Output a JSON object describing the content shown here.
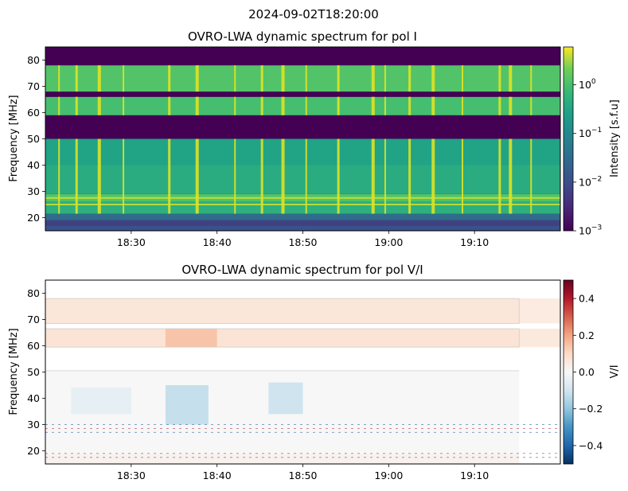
{
  "suptitle": "2024-09-02T18:20:00",
  "chart_data": [
    {
      "type": "heatmap",
      "title": "OVRO-LWA dynamic spectrum for pol I",
      "xlabel": "",
      "ylabel": "Frequency [MHz]",
      "x_range": [
        "18:20:00",
        "19:20:00"
      ],
      "x_ticks": [
        "18:30",
        "18:40",
        "18:50",
        "19:00",
        "19:10"
      ],
      "x_tick_minutes": [
        10,
        20,
        30,
        40,
        50
      ],
      "ylim": [
        15,
        85
      ],
      "y_ticks": [
        20,
        30,
        40,
        50,
        60,
        70,
        80
      ],
      "colormap": "viridis",
      "color_scale": "log",
      "clim": [
        0.001,
        6
      ],
      "colorbar_label": "Intensity [s.f.u]",
      "colorbar_ticks": [
        {
          "value": 0.001,
          "label": "10^-3"
        },
        {
          "value": 0.01,
          "label": "10^-2"
        },
        {
          "value": 0.1,
          "label": "10^-1"
        },
        {
          "value": 1,
          "label": "10^0"
        }
      ],
      "bands": [
        {
          "f0": 15,
          "f1": 17,
          "level": 0.28
        },
        {
          "f0": 17,
          "f1": 19,
          "level": 0.22
        },
        {
          "f0": 19,
          "f1": 21.5,
          "level": 0.4
        },
        {
          "f0": 21.5,
          "f1": 26,
          "level": 0.72
        },
        {
          "f0": 26,
          "f1": 29,
          "level": 0.8
        },
        {
          "f0": 29,
          "f1": 40,
          "level": 0.7
        },
        {
          "f0": 40,
          "f1": 50,
          "level": 0.66
        },
        {
          "f0": 50,
          "f1": 59,
          "level": 0.0
        },
        {
          "f0": 59,
          "f1": 66,
          "level": 0.78
        },
        {
          "f0": 66,
          "f1": 68,
          "level": 0.0
        },
        {
          "f0": 68,
          "f1": 78,
          "level": 0.8
        },
        {
          "f0": 78,
          "f1": 85,
          "level": 0.0
        }
      ],
      "bursts_minutes": [
        1.5,
        3.5,
        6.1,
        9.0,
        14.3,
        17.5,
        22.0,
        25.1,
        27.5,
        30.3,
        34.0,
        38.0,
        39.5,
        42.3,
        45.0,
        48.5,
        52.8,
        54.0,
        56.5
      ]
    },
    {
      "type": "heatmap",
      "title": "OVRO-LWA dynamic spectrum for pol V/I",
      "xlabel": "",
      "ylabel": "Frequency [MHz]",
      "x_range": [
        "18:20:00",
        "19:20:00"
      ],
      "x_ticks": [
        "18:30",
        "18:40",
        "18:50",
        "19:00",
        "19:10"
      ],
      "x_tick_minutes": [
        10,
        20,
        30,
        40,
        50
      ],
      "ylim": [
        15,
        85
      ],
      "y_ticks": [
        20,
        30,
        40,
        50,
        60,
        70,
        80
      ],
      "colormap": "RdBu_r",
      "color_scale": "linear",
      "clim": [
        -0.5,
        0.5
      ],
      "colorbar_label": "V/I",
      "colorbar_ticks": [
        {
          "value": 0.4,
          "label": "0.4"
        },
        {
          "value": 0.2,
          "label": "0.2"
        },
        {
          "value": 0.0,
          "label": "0.0"
        },
        {
          "value": -0.2,
          "label": "−0.2"
        },
        {
          "value": -0.4,
          "label": "−0.4"
        }
      ],
      "bands": [
        {
          "f0": 15,
          "f1": 19,
          "value": 0.02
        },
        {
          "f0": 19,
          "f1": 26,
          "value": 0.0
        },
        {
          "f0": 26,
          "f1": 30,
          "value": 0.0
        },
        {
          "f0": 30,
          "f1": 50.5,
          "value": 0.0
        },
        {
          "f0": 59.5,
          "f1": 66.5,
          "value": 0.07
        },
        {
          "f0": 68.5,
          "f1": 78,
          "value": 0.06
        }
      ],
      "regions": [
        {
          "t0": 0,
          "t1": 60,
          "f0": 59.5,
          "f1": 66.5,
          "value": 0.07
        },
        {
          "t0": 0,
          "t1": 60,
          "f0": 68.5,
          "f1": 78,
          "value": 0.06
        },
        {
          "t0": 14,
          "t1": 20,
          "f0": 59.5,
          "f1": 66.5,
          "value": 0.16
        },
        {
          "t0": 14,
          "t1": 19,
          "f0": 30,
          "f1": 45,
          "value": -0.14
        },
        {
          "t0": 26,
          "t1": 30,
          "f0": 34,
          "f1": 46,
          "value": -0.12
        },
        {
          "t0": 3,
          "t1": 10,
          "f0": 34,
          "f1": 44,
          "value": -0.06
        }
      ]
    }
  ]
}
